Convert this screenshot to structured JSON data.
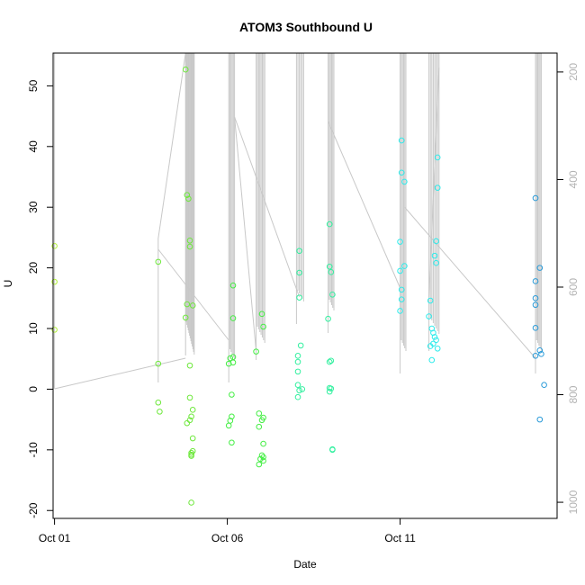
{
  "chart_data": {
    "type": "scatter",
    "title": "ATOM3 Southbound U",
    "xlabel": "Date",
    "ylabel": "U",
    "x_axis": {
      "type": "date",
      "range": [
        "2021-09-30T23:00",
        "2021-10-15T13:00"
      ],
      "ticks": [
        {
          "value": "2021-10-01T00:00",
          "label": "Oct 01"
        },
        {
          "value": "2021-10-06T00:00",
          "label": "Oct 06"
        },
        {
          "value": "2021-10-11T00:00",
          "label": "Oct 11"
        }
      ]
    },
    "y_axis": {
      "range": [
        -21.3,
        55.4
      ],
      "ticks": [
        {
          "value": -20,
          "label": "-20"
        },
        {
          "value": -10,
          "label": "-10"
        },
        {
          "value": 0,
          "label": "0"
        },
        {
          "value": 10,
          "label": "10"
        },
        {
          "value": 20,
          "label": "20"
        },
        {
          "value": 30,
          "label": "30"
        },
        {
          "value": 40,
          "label": "40"
        },
        {
          "value": 50,
          "label": "50"
        }
      ]
    },
    "y2_axis": {
      "range": [
        1030,
        165
      ],
      "line_color": "#c8c8c8",
      "ticks": [
        {
          "value": 200,
          "label": "200"
        },
        {
          "value": 400,
          "label": "400"
        },
        {
          "value": 600,
          "label": "600"
        },
        {
          "value": 800,
          "label": "800"
        },
        {
          "value": 1000,
          "label": "1000"
        }
      ]
    },
    "grid": false,
    "marker": "open-circle",
    "series": [
      {
        "color": "#b3f03c",
        "points": [
          [
            "2021-10-01T00:00",
            23.6
          ],
          [
            "2021-10-01T00:00",
            17.7
          ],
          [
            "2021-10-01T00:00",
            9.8
          ]
        ]
      },
      {
        "color": "#6ee83c",
        "points": [
          [
            "2021-10-04T00:00",
            21.0
          ],
          [
            "2021-10-04T00:00",
            4.2
          ],
          [
            "2021-10-04T00:00",
            -2.2
          ],
          [
            "2021-10-04T01:00",
            -3.7
          ],
          [
            "2021-10-04T19:00",
            52.7
          ],
          [
            "2021-10-04T20:00",
            32.0
          ],
          [
            "2021-10-04T21:00",
            31.4
          ],
          [
            "2021-10-04T22:00",
            24.5
          ],
          [
            "2021-10-04T22:00",
            23.5
          ],
          [
            "2021-10-04T20:00",
            14.0
          ],
          [
            "2021-10-05T00:00",
            13.8
          ],
          [
            "2021-10-04T19:00",
            11.8
          ],
          [
            "2021-10-04T22:00",
            3.9
          ],
          [
            "2021-10-04T22:00",
            -1.4
          ],
          [
            "2021-10-05T00:00",
            -3.4
          ],
          [
            "2021-10-04T23:00",
            -4.5
          ],
          [
            "2021-10-04T22:00",
            -5.1
          ],
          [
            "2021-10-04T20:00",
            -5.6
          ],
          [
            "2021-10-05T00:00",
            -8.1
          ],
          [
            "2021-10-05T00:00",
            -10.2
          ],
          [
            "2021-10-04T23:00",
            -10.5
          ],
          [
            "2021-10-04T23:00",
            -10.8
          ],
          [
            "2021-10-04T23:00",
            -11.0
          ],
          [
            "2021-10-04T23:00",
            -18.7
          ]
        ]
      },
      {
        "color": "#44ee44",
        "points": [
          [
            "2021-10-06T04:00",
            17.1
          ],
          [
            "2021-10-06T04:00",
            11.7
          ],
          [
            "2021-10-06T02:00",
            5.1
          ],
          [
            "2021-10-06T04:00",
            5.3
          ],
          [
            "2021-10-06T01:00",
            4.2
          ],
          [
            "2021-10-06T04:00",
            4.4
          ],
          [
            "2021-10-06T03:00",
            -0.9
          ],
          [
            "2021-10-06T03:00",
            -4.5
          ],
          [
            "2021-10-06T02:00",
            -5.2
          ],
          [
            "2021-10-06T01:00",
            -6.0
          ],
          [
            "2021-10-06T03:00",
            -8.8
          ],
          [
            "2021-10-06T20:00",
            6.2
          ],
          [
            "2021-10-07T00:00",
            12.4
          ],
          [
            "2021-10-07T01:00",
            10.3
          ],
          [
            "2021-10-06T22:00",
            -4.0
          ],
          [
            "2021-10-07T01:00",
            -4.7
          ],
          [
            "2021-10-07T00:00",
            -5.1
          ],
          [
            "2021-10-06T22:00",
            -6.2
          ],
          [
            "2021-10-07T01:00",
            -9.0
          ],
          [
            "2021-10-07T00:00",
            -10.9
          ],
          [
            "2021-10-07T01:00",
            -11.2
          ],
          [
            "2021-10-06T23:00",
            -11.5
          ],
          [
            "2021-10-07T01:00",
            -11.8
          ],
          [
            "2021-10-06T22:00",
            -12.4
          ]
        ]
      },
      {
        "color": "#33f0a0",
        "points": [
          [
            "2021-10-08T02:00",
            22.8
          ],
          [
            "2021-10-08T02:00",
            19.2
          ],
          [
            "2021-10-08T02:00",
            15.1
          ],
          [
            "2021-10-08T03:00",
            7.2
          ],
          [
            "2021-10-08T01:00",
            5.5
          ],
          [
            "2021-10-08T01:00",
            4.5
          ],
          [
            "2021-10-08T01:00",
            2.9
          ],
          [
            "2021-10-08T01:00",
            0.7
          ],
          [
            "2021-10-08T04:00",
            0.0
          ],
          [
            "2021-10-08T02:00",
            -0.2
          ],
          [
            "2021-10-08T01:00",
            -1.3
          ],
          [
            "2021-10-08T23:00",
            27.2
          ],
          [
            "2021-10-08T23:00",
            20.2
          ],
          [
            "2021-10-09T00:00",
            19.3
          ],
          [
            "2021-10-09T01:00",
            15.6
          ],
          [
            "2021-10-08T22:00",
            11.6
          ],
          [
            "2021-10-09T00:00",
            4.7
          ],
          [
            "2021-10-08T23:00",
            4.5
          ],
          [
            "2021-10-08T23:00",
            0.2
          ],
          [
            "2021-10-09T00:00",
            0.1
          ],
          [
            "2021-10-08T23:00",
            -0.4
          ],
          [
            "2021-10-09T01:00",
            -9.9
          ],
          [
            "2021-10-09T01:00",
            -10.0
          ]
        ]
      },
      {
        "color": "#2eebeb",
        "points": [
          [
            "2021-10-11T01:00",
            41.0
          ],
          [
            "2021-10-11T01:00",
            35.7
          ],
          [
            "2021-10-11T03:00",
            34.2
          ],
          [
            "2021-10-11T00:00",
            24.3
          ],
          [
            "2021-10-11T03:00",
            20.3
          ],
          [
            "2021-10-11T00:00",
            19.5
          ],
          [
            "2021-10-11T01:00",
            16.4
          ],
          [
            "2021-10-11T01:00",
            14.8
          ],
          [
            "2021-10-11T00:00",
            12.9
          ],
          [
            "2021-10-12T02:00",
            38.2
          ],
          [
            "2021-10-12T02:00",
            33.2
          ],
          [
            "2021-10-12T01:00",
            24.4
          ],
          [
            "2021-10-12T00:00",
            22.0
          ],
          [
            "2021-10-12T01:00",
            20.8
          ],
          [
            "2021-10-11T21:00",
            14.6
          ],
          [
            "2021-10-11T20:00",
            12.0
          ],
          [
            "2021-10-11T22:00",
            10.0
          ],
          [
            "2021-10-11T23:00",
            9.3
          ],
          [
            "2021-10-12T00:00",
            8.6
          ],
          [
            "2021-10-12T01:00",
            8.1
          ],
          [
            "2021-10-11T23:00",
            7.5
          ],
          [
            "2021-10-11T21:00",
            7.1
          ],
          [
            "2021-10-12T02:00",
            6.7
          ],
          [
            "2021-10-11T22:00",
            4.8
          ]
        ]
      },
      {
        "color": "#2b9bd8",
        "points": [
          [
            "2021-10-14T22:00",
            31.5
          ],
          [
            "2021-10-15T01:00",
            20.0
          ],
          [
            "2021-10-14T22:00",
            17.8
          ],
          [
            "2021-10-14T22:00",
            15.0
          ],
          [
            "2021-10-14T22:00",
            13.9
          ],
          [
            "2021-10-14T22:00",
            10.1
          ],
          [
            "2021-10-15T01:00",
            6.4
          ],
          [
            "2021-10-15T02:00",
            5.8
          ],
          [
            "2021-10-14T22:00",
            5.5
          ],
          [
            "2021-10-15T04:00",
            0.7
          ],
          [
            "2021-10-15T01:00",
            -5.0
          ]
        ]
      }
    ]
  }
}
